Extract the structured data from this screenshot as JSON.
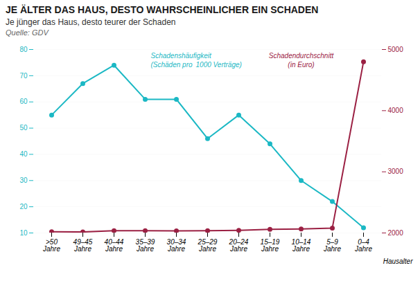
{
  "chart_data": {
    "type": "line",
    "title": "JE ÄLTER DAS HAUS, DESTO WAHRSCHEINLICHER EIN SCHADEN",
    "subtitle": "Je jünger das Haus, desto teurer der Schaden",
    "source": "Quelle: GDV",
    "xlabel": "Hausalter",
    "categories": [
      ">50\nJahre",
      "49–45\nJahre",
      "40–44\nJahre",
      "35–39\nJahre",
      "30–34\nJahre",
      "25–29\nJahre",
      "20–24\nJahre",
      "15–19\nJahre",
      "10–14\nJahre",
      "5–9\nJahre",
      "0–4\nJahre"
    ],
    "series": [
      {
        "name": "Schadenshäufigkeit\n(Schäden pro 1000 Verträge)",
        "color": "#1BB8C4",
        "marker": "circle",
        "values": [
          55,
          67,
          74,
          61,
          61,
          46,
          55,
          44,
          30,
          22,
          12
        ]
      },
      {
        "name": "Schadendurchschnitt\n(in Euro)",
        "color": "#9B2043",
        "marker": "circle",
        "axis": "y2",
        "values": [
          2020,
          2016,
          2037,
          2036,
          2035,
          2037,
          2043,
          2059,
          2066,
          2080,
          4800
        ]
      }
    ],
    "ylim": [
      10,
      80
    ],
    "yticks": [
      10,
      20,
      30,
      40,
      50,
      60,
      70,
      80
    ],
    "y2lim": [
      2000,
      5000
    ],
    "y2ticks": [
      2000,
      3000,
      4000,
      5000
    ],
    "grid": true
  }
}
